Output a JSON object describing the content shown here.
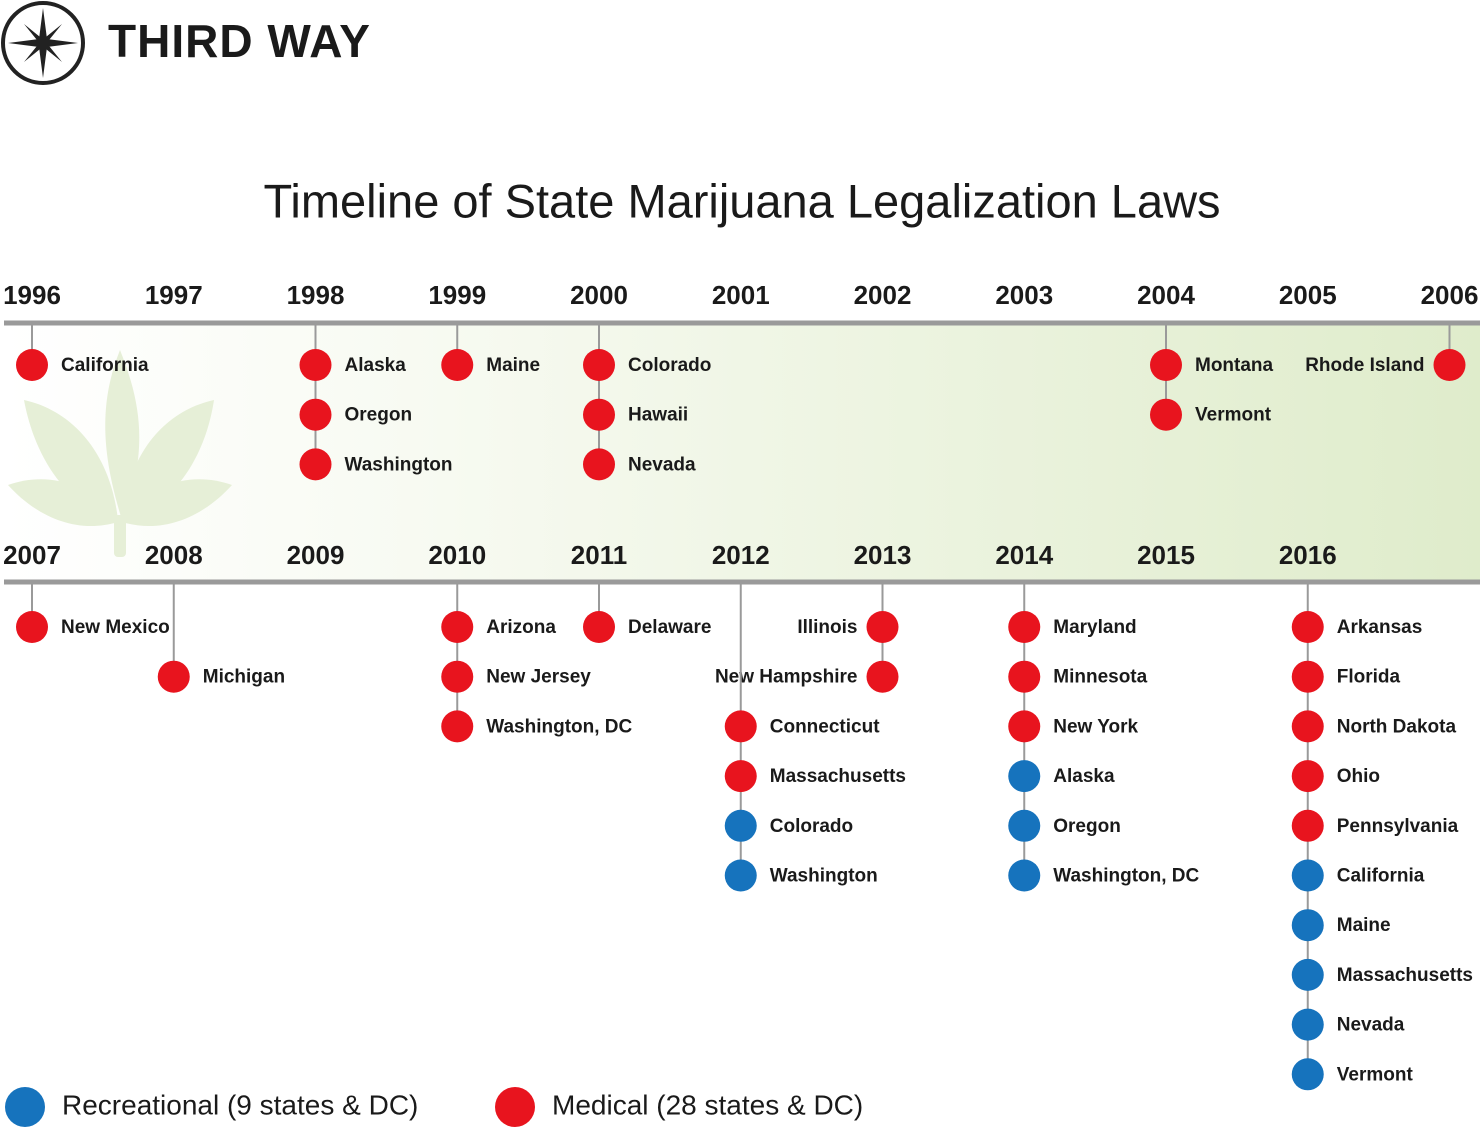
{
  "header": {
    "brand": "THIRD WAY"
  },
  "title": "Timeline of State Marijuana Legalization Laws",
  "legend": [
    {
      "kind": "recreational",
      "label": "Recreational (9 states & DC)",
      "color": "#1673bd"
    },
    {
      "kind": "medical",
      "label": "Medical (28 states & DC)",
      "color": "#e8141e"
    }
  ],
  "rows": [
    {
      "years": [
        {
          "label": "1996",
          "states": [
            {
              "name": "California",
              "kind": "medical"
            }
          ]
        },
        {
          "label": "1997",
          "states": []
        },
        {
          "label": "1998",
          "states": [
            {
              "name": "Alaska",
              "kind": "medical"
            },
            {
              "name": "Oregon",
              "kind": "medical"
            },
            {
              "name": "Washington",
              "kind": "medical"
            }
          ]
        },
        {
          "label": "1999",
          "states": [
            {
              "name": "Maine",
              "kind": "medical"
            }
          ]
        },
        {
          "label": "2000",
          "states": [
            {
              "name": "Colorado",
              "kind": "medical"
            },
            {
              "name": "Hawaii",
              "kind": "medical"
            },
            {
              "name": "Nevada",
              "kind": "medical"
            }
          ]
        },
        {
          "label": "2001",
          "states": []
        },
        {
          "label": "2002",
          "states": []
        },
        {
          "label": "2003",
          "states": []
        },
        {
          "label": "2004",
          "states": [
            {
              "name": "Montana",
              "kind": "medical"
            },
            {
              "name": "Vermont",
              "kind": "medical"
            }
          ]
        },
        {
          "label": "2005",
          "states": []
        },
        {
          "label": "2006",
          "label_side": "left",
          "states": [
            {
              "name": "Rhode Island",
              "kind": "medical"
            }
          ]
        }
      ]
    },
    {
      "years": [
        {
          "label": "2007",
          "states": [
            {
              "name": "New Mexico",
              "kind": "medical"
            }
          ]
        },
        {
          "label": "2008",
          "states": [
            {
              "name": "Michigan",
              "kind": "medical"
            }
          ]
        },
        {
          "label": "2009",
          "states": []
        },
        {
          "label": "2010",
          "states": [
            {
              "name": "Arizona",
              "kind": "medical"
            },
            {
              "name": "New Jersey",
              "kind": "medical"
            },
            {
              "name": "Washington, DC",
              "kind": "medical"
            }
          ]
        },
        {
          "label": "2011",
          "states": [
            {
              "name": "Delaware",
              "kind": "medical"
            }
          ]
        },
        {
          "label": "2012",
          "states": [
            {
              "name": "Connecticut",
              "kind": "medical"
            },
            {
              "name": "Massachusetts",
              "kind": "medical"
            },
            {
              "name": "Colorado",
              "kind": "recreational"
            },
            {
              "name": "Washington",
              "kind": "recreational"
            }
          ]
        },
        {
          "label": "2013",
          "label_side": "left",
          "states": [
            {
              "name": "Illinois",
              "kind": "medical"
            },
            {
              "name": "New Hampshire",
              "kind": "medical"
            }
          ]
        },
        {
          "label": "2014",
          "states": [
            {
              "name": "Maryland",
              "kind": "medical"
            },
            {
              "name": "Minnesota",
              "kind": "medical"
            },
            {
              "name": "New York",
              "kind": "medical"
            },
            {
              "name": "Alaska",
              "kind": "recreational"
            },
            {
              "name": "Oregon",
              "kind": "recreational"
            },
            {
              "name": "Washington, DC",
              "kind": "recreational"
            }
          ]
        },
        {
          "label": "2015",
          "states": []
        },
        {
          "label": "2016",
          "states": [
            {
              "name": "Arkansas",
              "kind": "medical"
            },
            {
              "name": "Florida",
              "kind": "medical"
            },
            {
              "name": "North Dakota",
              "kind": "medical"
            },
            {
              "name": "Ohio",
              "kind": "medical"
            },
            {
              "name": "Pennsylvania",
              "kind": "medical"
            },
            {
              "name": "California",
              "kind": "recreational"
            },
            {
              "name": "Maine",
              "kind": "recreational"
            },
            {
              "name": "Massachusetts",
              "kind": "recreational"
            },
            {
              "name": "Nevada",
              "kind": "recreational"
            },
            {
              "name": "Vermont",
              "kind": "recreational"
            }
          ]
        }
      ]
    }
  ]
}
